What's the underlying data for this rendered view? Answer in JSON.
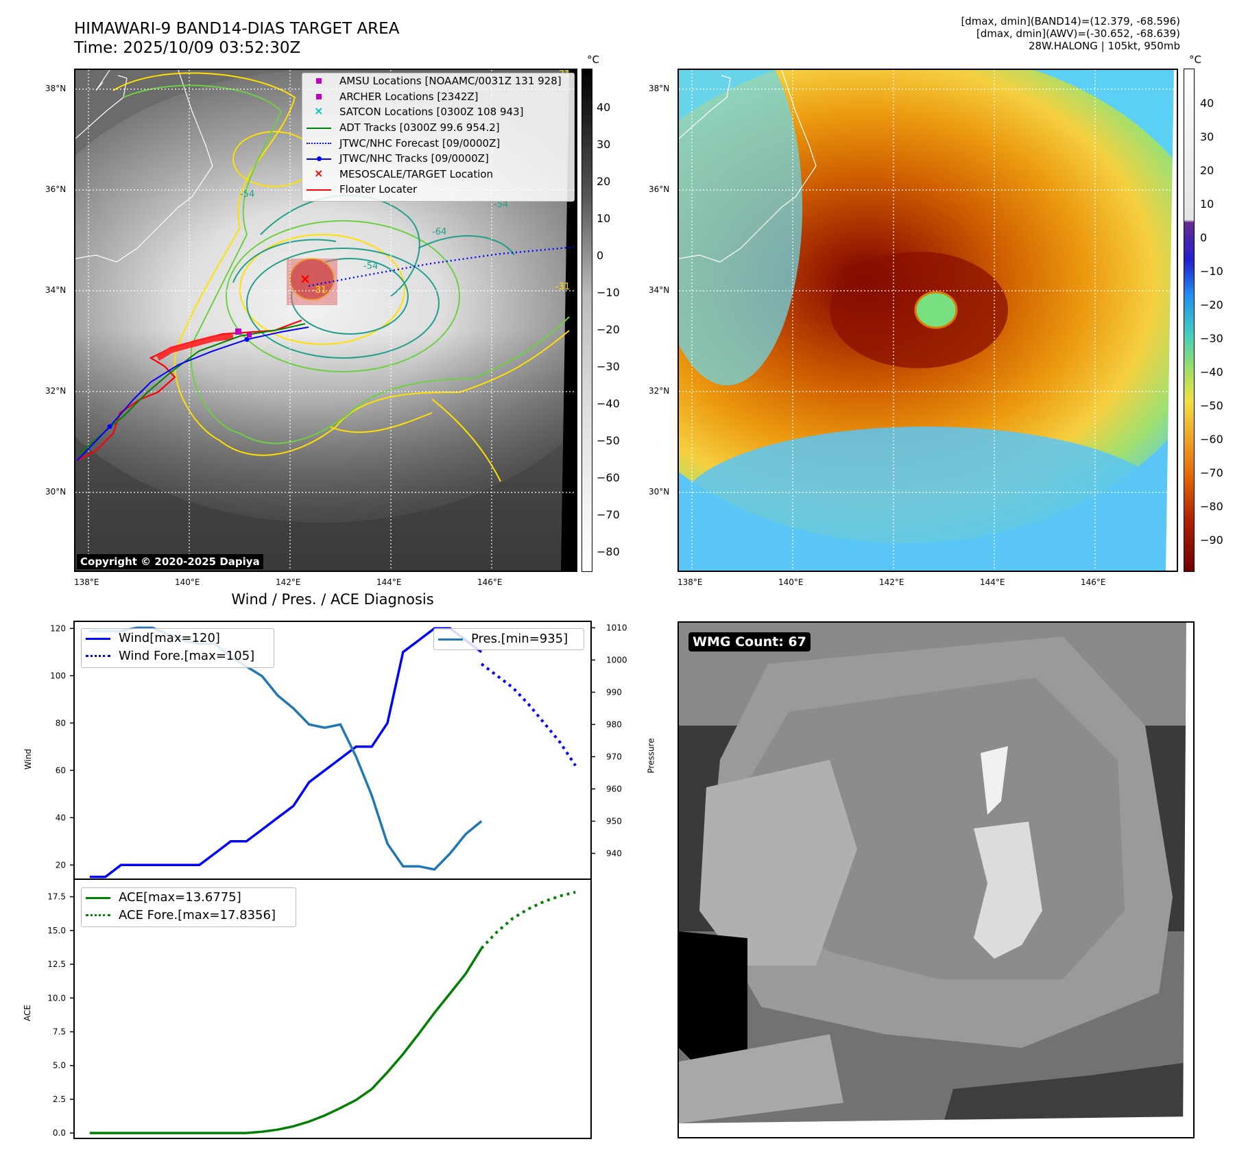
{
  "header": {
    "title_line1": "HIMAWARI-9 BAND14-DIAS TARGET AREA",
    "title_line2": "Time: 2025/10/09 03:52:30Z",
    "right_line1": "[dmax, dmin](BAND14)=(12.379, -68.596)",
    "right_line2": "[dmax, dmin](AWV)=(-30.652, -68.639)",
    "right_line3": "28W.HALONG | 105kt, 950mb"
  },
  "map_left": {
    "lat_labels": [
      "38°N",
      "36°N",
      "34°N",
      "32°N",
      "30°N"
    ],
    "lon_labels": [
      "138°E",
      "140°E",
      "142°E",
      "144°E",
      "146°E"
    ],
    "copyright": "Copyright © 2020-2025 Dapiya",
    "contour_labels": [
      "-54",
      "-54",
      "-64",
      "-54",
      "-31",
      "-31",
      "-31"
    ],
    "legend": [
      {
        "label": "AMSU Locations [NOAAMC/0031Z 131 928]",
        "color": "#c000c0",
        "marker": "square"
      },
      {
        "label": "ARCHER Locations [2342Z]",
        "color": "#c000c0",
        "marker": "square"
      },
      {
        "label": "SATCON Locations [0300Z 108 943]",
        "color": "#00c0c0",
        "marker": "x"
      },
      {
        "label": "ADT Tracks [0300Z 99.6 954.2]",
        "color": "#008000",
        "marker": "line"
      },
      {
        "label": "JTWC/NHC Forecast [09/0000Z]",
        "color": "#0000ff",
        "marker": "dotted"
      },
      {
        "label": "JTWC/NHC Tracks [09/0000Z]",
        "color": "#0000ff",
        "marker": "line-dot"
      },
      {
        "label": "MESOSCALE/TARGET Location",
        "color": "#ff0000",
        "marker": "x"
      },
      {
        "label": "Floater Locater",
        "color": "#ff0000",
        "marker": "line"
      }
    ],
    "colorbar_unit": "°C",
    "colorbar_ticks": [
      "40",
      "30",
      "20",
      "10",
      "0",
      "−10",
      "−20",
      "−30",
      "−40",
      "−50",
      "−60",
      "−70",
      "−80"
    ]
  },
  "map_right": {
    "lat_labels": [
      "38°N",
      "36°N",
      "34°N",
      "32°N",
      "30°N"
    ],
    "lon_labels": [
      "138°E",
      "140°E",
      "142°E",
      "144°E",
      "146°E"
    ],
    "colorbar_unit": "°C",
    "colorbar_ticks": [
      "40",
      "30",
      "20",
      "10",
      "0",
      "−10",
      "−20",
      "−30",
      "−40",
      "−50",
      "−60",
      "−70",
      "−80",
      "−90"
    ]
  },
  "wmg": {
    "label": "WMG Count: 67"
  },
  "chart_data": [
    {
      "type": "line",
      "title": "Wind / Pres. / ACE Diagnosis",
      "ylabel": "Wind",
      "ylabel_right": "Pressure",
      "ylim": [
        14,
        123
      ],
      "ylim_right": [
        932,
        1012
      ],
      "yticks": [
        20,
        40,
        60,
        80,
        100,
        120
      ],
      "yticks_right": [
        940,
        950,
        960,
        970,
        980,
        990,
        1000,
        1010
      ],
      "xlim": [
        -1,
        32
      ],
      "series": [
        {
          "name": "Wind[max=120]",
          "color": "#0000ff",
          "style": "solid",
          "x": [
            0,
            1,
            2,
            3,
            4,
            5,
            6,
            7,
            8,
            9,
            10,
            11,
            12,
            13,
            14,
            15,
            16,
            17,
            18,
            19,
            20,
            21,
            22,
            23,
            24,
            25
          ],
          "y": [
            15,
            15,
            20,
            20,
            20,
            20,
            20,
            20,
            25,
            30,
            30,
            35,
            40,
            45,
            55,
            60,
            65,
            70,
            70,
            80,
            110,
            115,
            120,
            120,
            115,
            110
          ]
        },
        {
          "name": "Wind Fore.[max=105]",
          "color": "#0000ff",
          "style": "dotted",
          "x": [
            25,
            26,
            27,
            28,
            29,
            30,
            31
          ],
          "y": [
            105,
            100,
            95,
            88,
            80,
            72,
            62
          ]
        },
        {
          "name": "Pres.[min=935]",
          "color": "#1f77b4",
          "style": "solid",
          "axis": "right",
          "x": [
            0,
            1,
            2,
            3,
            4,
            5,
            6,
            7,
            8,
            9,
            10,
            11,
            12,
            13,
            14,
            15,
            16,
            17,
            18,
            19,
            20,
            21,
            22,
            23,
            24,
            25
          ],
          "y": [
            1009,
            1009,
            1009,
            1010,
            1010,
            1008,
            1006,
            1005,
            1005,
            1001,
            998,
            995,
            989,
            985,
            980,
            979,
            980,
            970,
            958,
            943,
            936,
            936,
            935,
            940,
            946,
            950
          ]
        }
      ]
    },
    {
      "type": "line",
      "ylabel": "ACE",
      "ylim": [
        -0.4,
        18.8
      ],
      "yticks": [
        0.0,
        2.5,
        5.0,
        7.5,
        10.0,
        12.5,
        15.0,
        17.5
      ],
      "ytick_labels": [
        "0.0",
        "2.5",
        "5.0",
        "7.5",
        "10.0",
        "12.5",
        "15.0",
        "17.5"
      ],
      "xlim": [
        -1,
        32
      ],
      "series": [
        {
          "name": "ACE[max=13.6775]",
          "color": "#008000",
          "style": "solid",
          "x": [
            0,
            2,
            4,
            6,
            8,
            10,
            11,
            12,
            13,
            14,
            15,
            16,
            17,
            18,
            19,
            20,
            21,
            22,
            23,
            24,
            25
          ],
          "y": [
            0,
            0,
            0,
            0,
            0,
            0,
            0.1,
            0.25,
            0.5,
            0.85,
            1.3,
            1.85,
            2.45,
            3.25,
            4.5,
            5.85,
            7.35,
            8.9,
            10.35,
            11.8,
            13.68
          ]
        },
        {
          "name": "ACE Fore.[max=17.8356]",
          "color": "#008000",
          "style": "dotted",
          "x": [
            25,
            26,
            27,
            28,
            29,
            30,
            31
          ],
          "y": [
            13.68,
            14.9,
            15.9,
            16.6,
            17.15,
            17.55,
            17.84
          ]
        }
      ]
    }
  ]
}
